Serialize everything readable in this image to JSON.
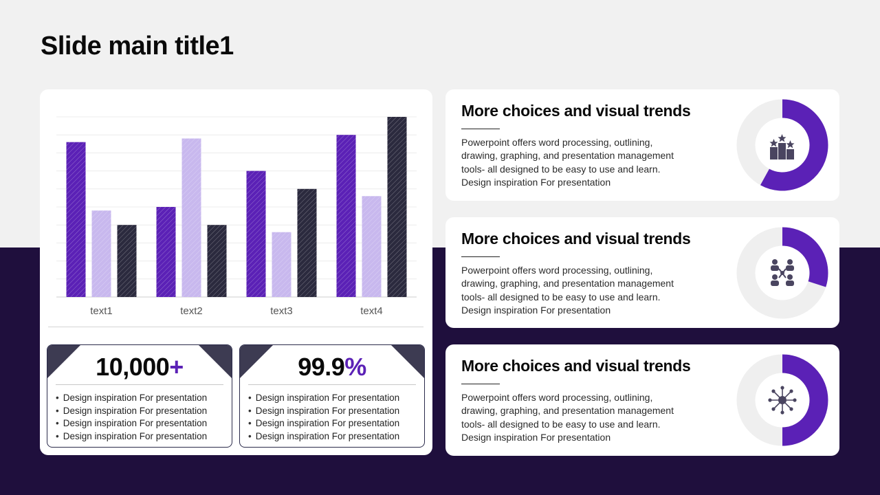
{
  "slide": {
    "title": "Slide main title1"
  },
  "chart_data": {
    "type": "bar",
    "categories": [
      "text1",
      "text2",
      "text3",
      "text4"
    ],
    "series": [
      {
        "values": [
          4.3,
          2.5,
          3.5,
          4.5
        ],
        "color": "#5b21b6"
      },
      {
        "values": [
          2.4,
          4.4,
          1.8,
          2.8
        ],
        "color": "#c8b8ee"
      },
      {
        "values": [
          2.0,
          2.0,
          3.0,
          5.0
        ],
        "color": "#2b2a3e"
      }
    ],
    "ylim": [
      0,
      5
    ],
    "grid": true,
    "legend": "none",
    "title": "",
    "xlabel": "",
    "ylabel": ""
  },
  "stats": [
    {
      "value": "10,000",
      "suffix": "+",
      "items": [
        "Design inspiration For presentation",
        "Design inspiration For presentation",
        "Design inspiration For presentation",
        "Design inspiration For presentation"
      ]
    },
    {
      "value": "99.9",
      "suffix": "%",
      "items": [
        "Design inspiration For presentation",
        "Design inspiration For presentation",
        "Design inspiration For presentation",
        "Design inspiration For presentation"
      ]
    }
  ],
  "cards": [
    {
      "heading": "More choices and visual trends",
      "body": "Powerpoint offers word processing, outlining, drawing, graphing, and presentation management tools- all designed to be easy to use and learn. Design inspiration For presentation",
      "donut_fraction": 0.58,
      "icon": "podium-stars-icon"
    },
    {
      "heading": "More choices and visual trends",
      "body": "Powerpoint offers word processing, outlining, drawing, graphing, and presentation management tools- all designed to be easy to use and learn. Design inspiration For presentation",
      "donut_fraction": 0.3,
      "icon": "team-network-icon"
    },
    {
      "heading": "More choices and visual trends",
      "body": "Powerpoint offers word processing, outlining, drawing, graphing, and presentation management tools- all designed to be easy to use and learn. Design inspiration For presentation",
      "donut_fraction": 0.5,
      "icon": "hub-network-icon"
    }
  ],
  "colors": {
    "accent": "#5b21b6",
    "accent_light": "#c8b8ee",
    "dark": "#2b2a3e",
    "band": "#1f0f3d",
    "donut_track": "#efefef"
  }
}
